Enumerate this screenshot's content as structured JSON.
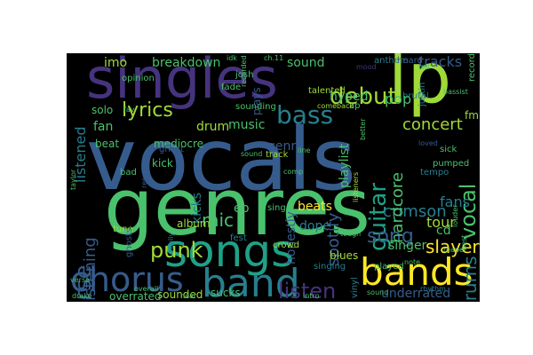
{
  "background": "#000000",
  "palette": {
    "purple": "#46337e",
    "blue": "#365c8d",
    "teal": "#277f8e",
    "green": "#1fa187",
    "lightgreen": "#4ac16d",
    "lime": "#a0da39",
    "yellow": "#fde725"
  },
  "words": [
    {
      "id": "vocals",
      "text": "vocals",
      "color": "#365c8d"
    },
    {
      "id": "genres",
      "text": "genres",
      "color": "#4ac16d"
    },
    {
      "id": "singles",
      "text": "singles",
      "color": "#46337e"
    },
    {
      "id": "lp",
      "text": "lp",
      "color": "#a0da39"
    },
    {
      "id": "songs",
      "text": "songs",
      "color": "#1fa187"
    },
    {
      "id": "chorus",
      "text": "chorus",
      "color": "#365c8d"
    },
    {
      "id": "band",
      "text": "band",
      "color": "#277f8e"
    },
    {
      "id": "bands",
      "text": "bands",
      "color": "#fde725"
    },
    {
      "id": "verse",
      "text": "verse",
      "color": "#365c8d"
    },
    {
      "id": "lyrics",
      "text": "lyrics",
      "color": "#a0da39"
    },
    {
      "id": "bass",
      "text": "bass",
      "color": "#277f8e"
    },
    {
      "id": "debut",
      "text": "debut",
      "color": "#a0da39"
    },
    {
      "id": "guitar",
      "text": "guitar",
      "color": "#1fa187"
    },
    {
      "id": "vocal",
      "text": "vocal",
      "color": "#4ac16d"
    },
    {
      "id": "drums",
      "text": "drums",
      "color": "#277f8e"
    },
    {
      "id": "punk",
      "text": "punk",
      "color": "#a0da39"
    },
    {
      "id": "listen",
      "text": "listen",
      "color": "#46337e"
    },
    {
      "id": "song",
      "text": "song",
      "color": "#365c8d"
    },
    {
      "id": "slayer",
      "text": "slayer",
      "color": "#fde725"
    },
    {
      "id": "crimson",
      "text": "crimson",
      "color": "#277f8e"
    },
    {
      "id": "hardcore",
      "text": "hardcore",
      "color": "#4ac16d"
    },
    {
      "id": "spotify",
      "text": "spotify",
      "color": "#365c8d"
    },
    {
      "id": "mic",
      "text": "mic",
      "color": "#4ac16d"
    },
    {
      "id": "listening",
      "text": "listening",
      "color": "#365c8d"
    },
    {
      "id": "listened",
      "text": "listened",
      "color": "#277f8e"
    },
    {
      "id": "concert",
      "text": "concert",
      "color": "#a0da39"
    },
    {
      "id": "fans",
      "text": "fans",
      "color": "#277f8e"
    },
    {
      "id": "tour",
      "text": "tour",
      "color": "#a0da39"
    },
    {
      "id": "cd",
      "text": "cd",
      "color": "#4ac16d"
    },
    {
      "id": "ep",
      "text": "ep",
      "color": "#4ac16d"
    },
    {
      "id": "genre",
      "text": "genre",
      "color": "#365c8d"
    },
    {
      "id": "music",
      "text": "music",
      "color": "#4ac16d"
    },
    {
      "id": "drum",
      "text": "drum",
      "color": "#a0da39"
    },
    {
      "id": "kicks",
      "text": "kicks",
      "color": "#277f8e"
    },
    {
      "id": "kick",
      "text": "kick",
      "color": "#4ac16d"
    },
    {
      "id": "sounded",
      "text": "sounded",
      "color": "#a0da39"
    },
    {
      "id": "sucks",
      "text": "sucks",
      "color": "#4ac16d"
    },
    {
      "id": "dope",
      "text": "dope",
      "color": "#277f8e"
    },
    {
      "id": "honestly",
      "text": "honestly",
      "color": "#365c8d"
    },
    {
      "id": "playlist",
      "text": "playlist",
      "color": "#4ac16d"
    },
    {
      "id": "beats",
      "text": "beats",
      "color": "#fde725"
    },
    {
      "id": "singer",
      "text": "singer",
      "color": "#4ac16d"
    },
    {
      "id": "underrated",
      "text": "underrated",
      "color": "#365c8d"
    },
    {
      "id": "overrated",
      "text": "overrated",
      "color": "#4ac16d"
    },
    {
      "id": "breakdown",
      "text": "breakdown",
      "color": "#4ac16d"
    },
    {
      "id": "sound",
      "text": "sound",
      "color": "#4ac16d"
    },
    {
      "id": "tracks",
      "text": "tracks",
      "color": "#365c8d"
    },
    {
      "id": "pop",
      "text": "pop",
      "color": "#4ac16d"
    },
    {
      "id": "hyped",
      "text": "hyped",
      "color": "#4ac16d"
    },
    {
      "id": "solo",
      "text": "solo",
      "color": "#4ac16d"
    },
    {
      "id": "fan",
      "text": "fan",
      "color": "#4ac16d"
    },
    {
      "id": "imo",
      "text": "imo",
      "color": "#a0da39"
    },
    {
      "id": "album",
      "text": "album",
      "color": "#a0da39"
    },
    {
      "id": "blues",
      "text": "blues",
      "color": "#a0da39"
    },
    {
      "id": "singing",
      "text": "singing",
      "color": "#277f8e"
    },
    {
      "id": "plays",
      "text": "plays",
      "color": "#365c8d"
    },
    {
      "id": "mediocre",
      "text": "mediocre",
      "color": "#4ac16d"
    },
    {
      "id": "beat",
      "text": "beat",
      "color": "#4ac16d"
    },
    {
      "id": "track",
      "text": "track",
      "color": "#a0da39"
    },
    {
      "id": "tune",
      "text": "tune",
      "color": "#a0da39"
    },
    {
      "id": "vinyl",
      "text": "vinyl",
      "color": "#277f8e"
    },
    {
      "id": "ghosts",
      "text": "ghosts",
      "color": "#365c8d"
    },
    {
      "id": "talented",
      "text": "talented",
      "color": "#a0da39"
    },
    {
      "id": "sounding",
      "text": "sounding",
      "color": "#4ac16d"
    },
    {
      "id": "anthem",
      "text": "anthem",
      "color": "#277f8e"
    },
    {
      "id": "pumped",
      "text": "pumped",
      "color": "#4ac16d"
    },
    {
      "id": "tempo",
      "text": "tempo",
      "color": "#277f8e"
    },
    {
      "id": "sick",
      "text": "sick",
      "color": "#4ac16d"
    },
    {
      "id": "fest",
      "text": "fest",
      "color": "#277f8e"
    },
    {
      "id": "ap",
      "text": "ap",
      "color": "#4ac16d"
    },
    {
      "id": "fm",
      "text": "fm",
      "color": "#a0da39"
    },
    {
      "id": "crowd",
      "text": "crowd",
      "color": "#a0da39"
    },
    {
      "id": "josh",
      "text": "josh",
      "color": "#4ac16d"
    },
    {
      "id": "heard",
      "text": "heard",
      "color": "#365c8d"
    },
    {
      "id": "justin",
      "text": "justin",
      "color": "#277f8e"
    },
    {
      "id": "brutal",
      "text": "brutal",
      "color": "#277f8e"
    },
    {
      "id": "opinion",
      "text": "opinion",
      "color": "#4ac16d"
    },
    {
      "id": "sing",
      "text": "sing",
      "color": "#4ac16d"
    },
    {
      "id": "played",
      "text": "played",
      "color": "#4ac16d"
    },
    {
      "id": "fade",
      "text": "fade",
      "color": "#4ac16d"
    },
    {
      "id": "mood",
      "text": "mood",
      "color": "#46337e"
    },
    {
      "id": "idk",
      "text": "idk",
      "color": "#4ac16d"
    },
    {
      "id": "ch11",
      "text": "ch.11",
      "color": "#4ac16d"
    },
    {
      "id": "comeback",
      "text": "comeback",
      "color": "#a0da39"
    },
    {
      "id": "listeners",
      "text": "listeners",
      "color": "#a0da39"
    },
    {
      "id": "better",
      "text": "better",
      "color": "#4ac16d"
    },
    {
      "id": "really",
      "text": "really",
      "color": "#277f8e"
    },
    {
      "id": "hear",
      "text": "hear",
      "color": "#4ac16d"
    },
    {
      "id": "comp",
      "text": "comp",
      "color": "#4ac16d"
    },
    {
      "id": "fav",
      "text": "fav",
      "color": "#4ac16d"
    },
    {
      "id": "ghost",
      "text": "ghost",
      "color": "#365c8d"
    },
    {
      "id": "rhythm",
      "text": "rhythm",
      "color": "#277f8e"
    },
    {
      "id": "reaper",
      "text": "reaper",
      "color": "#4ac16d"
    },
    {
      "id": "bad",
      "text": "bad",
      "color": "#4ac16d"
    },
    {
      "id": "record",
      "text": "record",
      "color": "#4ac16d"
    },
    {
      "id": "drake",
      "text": "drake",
      "color": "#4ac16d"
    },
    {
      "id": "sound2",
      "text": "sound",
      "color": "#4ac16d"
    },
    {
      "id": "overall",
      "text": "overall",
      "color": "#4ac16d"
    },
    {
      "id": "tough",
      "text": "tough",
      "color": "#4ac16d"
    },
    {
      "id": "loved",
      "text": "loved",
      "color": "#365c8d"
    },
    {
      "id": "tell",
      "text": "tell",
      "color": "#4ac16d"
    },
    {
      "id": "taylor",
      "text": "taylor",
      "color": "#4ac16d"
    },
    {
      "id": "bassist",
      "text": "bassist",
      "color": "#4ac16d"
    },
    {
      "id": "recorded",
      "text": "recorded",
      "color": "#4ac16d"
    },
    {
      "id": "note",
      "text": "note",
      "color": "#4ac16d"
    },
    {
      "id": "line",
      "text": "line",
      "color": "#4ac16d"
    },
    {
      "id": "louder",
      "text": "louder",
      "color": "#4ac16d"
    },
    {
      "id": "best",
      "text": "best",
      "color": "#4ac16d"
    },
    {
      "id": "repetitive",
      "text": "repetitive",
      "color": "#365c8d"
    },
    {
      "id": "verse2",
      "text": "verse",
      "color": "#4ac16d"
    },
    {
      "id": "sound3",
      "text": "sound",
      "color": "#4ac16d"
    },
    {
      "id": "intro",
      "text": "intro",
      "color": "#4ac16d"
    }
  ]
}
